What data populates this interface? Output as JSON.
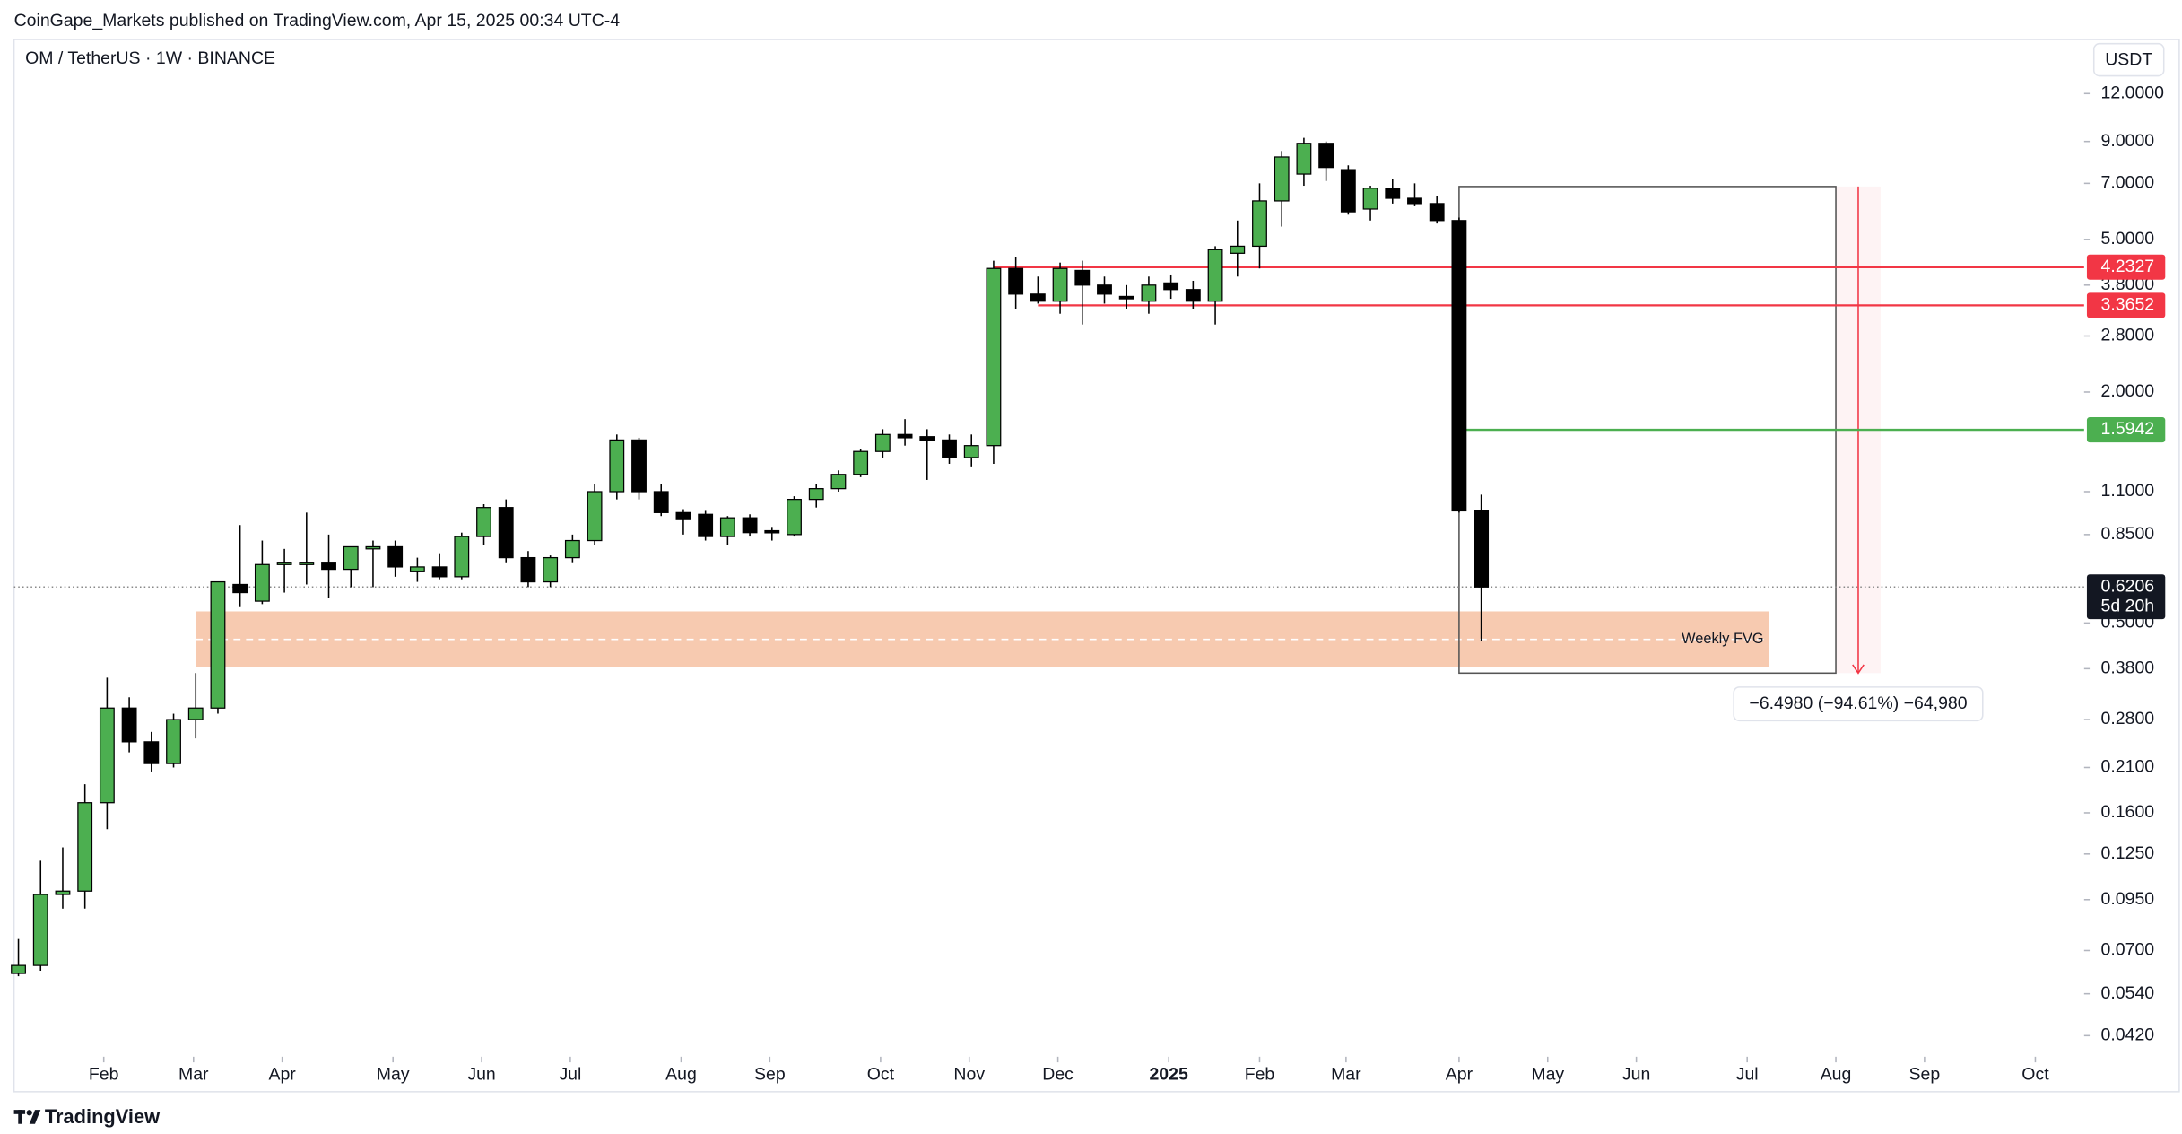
{
  "header": {
    "published": "CoinGape_Markets published on TradingView.com, Apr 15, 2025 00:34 UTC-4",
    "brand": "TradingView"
  },
  "chart_data": {
    "type": "candlestick",
    "title": "OM / TetherUS · 1W · BINANCE",
    "currency": "USDT",
    "log_scale": true,
    "up_color": "#4caf50",
    "down_color": "#000000",
    "x": [
      0,
      1,
      2,
      3,
      4,
      5,
      6,
      7,
      8,
      9,
      10,
      11,
      12,
      13,
      14,
      15,
      16,
      17,
      18,
      19,
      20,
      21,
      22,
      23,
      24,
      25,
      26,
      27,
      28,
      29,
      30,
      31,
      32,
      33,
      34,
      35,
      36,
      37,
      38,
      39,
      40,
      41,
      42,
      43,
      44,
      45,
      46,
      47,
      48,
      49,
      50,
      51,
      52,
      53,
      54,
      55,
      56,
      57,
      58,
      59,
      60,
      61,
      62,
      63,
      64,
      65,
      66
    ],
    "open": [
      0.061,
      0.064,
      0.098,
      0.1,
      0.17,
      0.3,
      0.245,
      0.215,
      0.28,
      0.3,
      0.63,
      0.57,
      0.71,
      0.71,
      0.72,
      0.69,
      0.79,
      0.79,
      0.68,
      0.7,
      0.66,
      0.84,
      1.0,
      0.74,
      0.64,
      0.74,
      0.82,
      1.1,
      1.5,
      1.1,
      0.97,
      0.96,
      0.84,
      0.94,
      0.87,
      0.85,
      1.05,
      1.12,
      1.22,
      1.4,
      1.55,
      1.53,
      1.5,
      1.35,
      1.45,
      4.2,
      3.6,
      3.45,
      4.15,
      3.8,
      3.55,
      3.45,
      3.85,
      3.7,
      3.45,
      4.6,
      4.8,
      6.3,
      7.4,
      8.9,
      7.6,
      6.0,
      6.8,
      6.4,
      6.2,
      5.6,
      0.98
    ],
    "high": [
      0.075,
      0.12,
      0.13,
      0.19,
      0.36,
      0.32,
      0.26,
      0.29,
      0.37,
      0.64,
      0.9,
      0.82,
      0.78,
      0.97,
      0.85,
      0.78,
      0.82,
      0.82,
      0.74,
      0.76,
      0.86,
      1.02,
      1.05,
      0.77,
      0.75,
      0.85,
      1.15,
      1.55,
      1.52,
      1.15,
      0.99,
      0.98,
      0.95,
      0.96,
      0.89,
      1.07,
      1.15,
      1.25,
      1.42,
      1.6,
      1.7,
      1.6,
      1.55,
      1.55,
      4.4,
      4.5,
      4.0,
      4.35,
      4.4,
      4.0,
      3.8,
      4.0,
      4.05,
      3.9,
      4.8,
      5.6,
      7.0,
      8.5,
      9.2,
      9.0,
      7.8,
      6.9,
      7.2,
      7.0,
      6.5,
      5.7,
      1.08
    ],
    "low": [
      0.06,
      0.062,
      0.09,
      0.09,
      0.145,
      0.23,
      0.205,
      0.21,
      0.25,
      0.29,
      0.55,
      0.56,
      0.6,
      0.63,
      0.58,
      0.62,
      0.62,
      0.66,
      0.64,
      0.65,
      0.65,
      0.8,
      0.72,
      0.62,
      0.62,
      0.72,
      0.8,
      1.05,
      1.05,
      0.95,
      0.85,
      0.82,
      0.8,
      0.84,
      0.82,
      0.84,
      1.0,
      1.1,
      1.2,
      1.35,
      1.45,
      1.18,
      1.3,
      1.28,
      1.3,
      3.3,
      3.4,
      3.2,
      3.0,
      3.4,
      3.3,
      3.2,
      3.5,
      3.3,
      3.0,
      4.0,
      4.2,
      5.4,
      6.9,
      7.1,
      5.8,
      5.6,
      6.2,
      6.1,
      5.5,
      0.97,
      0.45
    ],
    "close": [
      0.064,
      0.098,
      0.1,
      0.17,
      0.3,
      0.245,
      0.215,
      0.28,
      0.3,
      0.64,
      0.6,
      0.71,
      0.72,
      0.72,
      0.69,
      0.79,
      0.79,
      0.7,
      0.7,
      0.66,
      0.84,
      1.0,
      0.74,
      0.64,
      0.74,
      0.82,
      1.1,
      1.5,
      1.1,
      0.97,
      0.93,
      0.84,
      0.94,
      0.86,
      0.86,
      1.05,
      1.12,
      1.22,
      1.4,
      1.55,
      1.52,
      1.5,
      1.35,
      1.45,
      4.2,
      3.6,
      3.45,
      4.2,
      3.8,
      3.6,
      3.5,
      3.8,
      3.7,
      3.45,
      4.7,
      4.8,
      6.3,
      8.2,
      8.9,
      7.7,
      5.9,
      6.8,
      6.4,
      6.2,
      5.6,
      0.98,
      0.6206
    ],
    "xlim": [
      -0.2,
      93.2
    ],
    "xticks": [
      {
        "value": 3.85,
        "label": "Feb"
      },
      {
        "value": 7.9,
        "label": "Mar"
      },
      {
        "value": 11.9,
        "label": "Apr"
      },
      {
        "value": 16.9,
        "label": "May"
      },
      {
        "value": 20.9,
        "label": "Jun"
      },
      {
        "value": 24.9,
        "label": "Jul"
      },
      {
        "value": 29.9,
        "label": "Aug"
      },
      {
        "value": 33.9,
        "label": "Sep"
      },
      {
        "value": 38.9,
        "label": "Oct"
      },
      {
        "value": 42.9,
        "label": "Nov"
      },
      {
        "value": 46.9,
        "label": "Dec"
      },
      {
        "value": 51.9,
        "label": "2025"
      },
      {
        "value": 56,
        "label": "Feb"
      },
      {
        "value": 59.9,
        "label": "Mar"
      },
      {
        "value": 65,
        "label": "Apr"
      },
      {
        "value": 69,
        "label": "May"
      },
      {
        "value": 73,
        "label": "Jun"
      },
      {
        "value": 78,
        "label": "Jul"
      },
      {
        "value": 82,
        "label": "Aug"
      },
      {
        "value": 86,
        "label": "Sep"
      },
      {
        "value": 91,
        "label": "Oct"
      }
    ],
    "ylim": [
      0.037,
      16.6
    ],
    "yticks": [
      {
        "value": 12,
        "label": "12.0000"
      },
      {
        "value": 9,
        "label": "9.0000"
      },
      {
        "value": 7,
        "label": "7.0000"
      },
      {
        "value": 5,
        "label": "5.0000"
      },
      {
        "value": 3.8,
        "label": "3.8000"
      },
      {
        "value": 2.8,
        "label": "2.8000"
      },
      {
        "value": 2,
        "label": "2.0000"
      },
      {
        "value": 1.1,
        "label": "1.1000"
      },
      {
        "value": 0.85,
        "label": "0.8500"
      },
      {
        "value": 0.5,
        "label": "0.5000"
      },
      {
        "value": 0.38,
        "label": "0.3800"
      },
      {
        "value": 0.28,
        "label": "0.2800"
      },
      {
        "value": 0.21,
        "label": "0.2100"
      },
      {
        "value": 0.16,
        "label": "0.1600"
      },
      {
        "value": 0.125,
        "label": "0.1250"
      },
      {
        "value": 0.095,
        "label": "0.0950"
      },
      {
        "value": 0.07,
        "label": "0.0700"
      },
      {
        "value": 0.054,
        "label": "0.0540"
      },
      {
        "value": 0.042,
        "label": "0.0420"
      }
    ],
    "levels": [
      {
        "value": 4.2327,
        "label": "4.2327",
        "color": "#f23645",
        "x0": 44
      },
      {
        "value": 3.3652,
        "label": "3.3652",
        "color": "#f23645",
        "x0": 46
      },
      {
        "value": 1.5942,
        "label": "1.5942",
        "color": "#4caf50",
        "x0": 65
      }
    ],
    "last_price": {
      "value": 0.6206,
      "label": "0.6206",
      "countdown": "5d 20h"
    },
    "fvg": {
      "label": "Weekly FVG",
      "high": 0.536,
      "low": 0.383,
      "x0": 8,
      "x1": 79
    },
    "measure": {
      "label": "−6.4980 (−94.61%) −64,980",
      "high": 6.868,
      "low": 0.37,
      "x0": 65,
      "x1": 82
    }
  }
}
